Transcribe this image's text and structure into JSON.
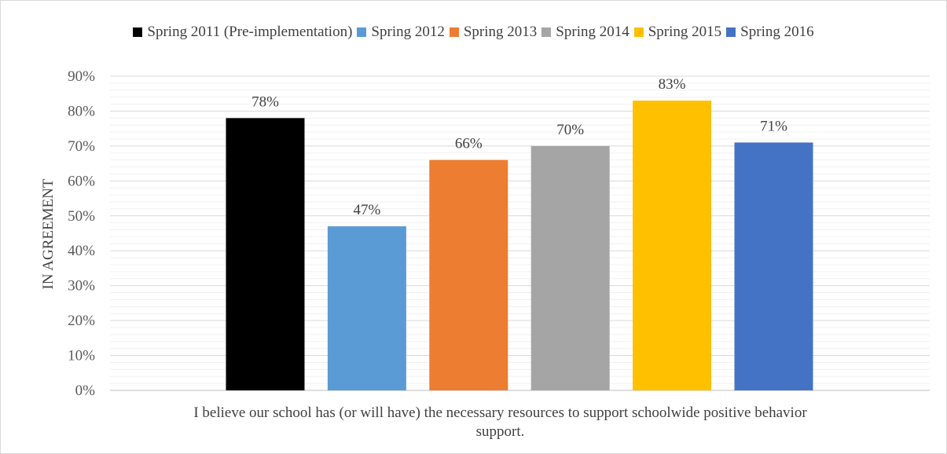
{
  "chart_data": {
    "type": "bar",
    "title": "",
    "ylabel": "IN AGREEMENT",
    "xlabel": "I believe our school has (or will have) the necessary resources to support schoolwide positive behavior support.",
    "category_lines": [
      "I believe our school has (or will have) the necessary resources to support schoolwide positive behavior",
      "support."
    ],
    "categories": [
      "I believe our school has (or will have) the necessary resources to support schoolwide positive behavior support."
    ],
    "ylim": [
      0,
      90
    ],
    "ytick_labels": [
      "0%",
      "10%",
      "20%",
      "30%",
      "40%",
      "50%",
      "60%",
      "70%",
      "80%",
      "90%"
    ],
    "grid": true,
    "legend_position": "top",
    "series": [
      {
        "name": "Spring 2011 (Pre-implementation)",
        "values": [
          78
        ],
        "label": "78%",
        "color": "#000000"
      },
      {
        "name": "Spring 2012",
        "values": [
          47
        ],
        "label": "47%",
        "color": "#5b9bd5"
      },
      {
        "name": "Spring 2013",
        "values": [
          66
        ],
        "label": "66%",
        "color": "#ed7d31"
      },
      {
        "name": "Spring 2014",
        "values": [
          70
        ],
        "label": "70%",
        "color": "#a5a5a5"
      },
      {
        "name": "Spring 2015",
        "values": [
          83
        ],
        "label": "83%",
        "color": "#ffc000"
      },
      {
        "name": "Spring 2016",
        "values": [
          71
        ],
        "label": "71%",
        "color": "#4472c4"
      }
    ]
  }
}
